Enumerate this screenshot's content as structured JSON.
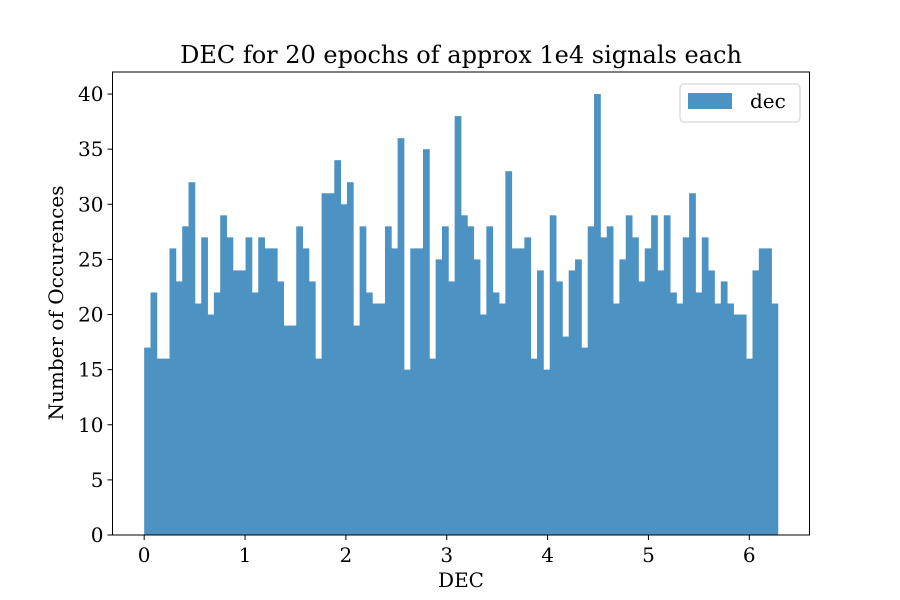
{
  "chart_data": {
    "type": "bar",
    "title": "DEC for 20 epochs of approx 1e4 signals each",
    "xlabel": "DEC",
    "ylabel": "Number of Occurences",
    "xlim": [
      -0.314,
      6.597
    ],
    "ylim": [
      0,
      42
    ],
    "x_ticks": [
      0,
      1,
      2,
      3,
      4,
      5,
      6
    ],
    "y_ticks": [
      0,
      5,
      10,
      15,
      20,
      25,
      30,
      35,
      40
    ],
    "bin_range": [
      0,
      6.283
    ],
    "grid": false,
    "legend": {
      "position": "top-right"
    },
    "series": [
      {
        "name": "dec",
        "color": "#4c92c3",
        "values": [
          17,
          22,
          16,
          16,
          26,
          23,
          28,
          32,
          21,
          27,
          20,
          22,
          29,
          27,
          24,
          24,
          27,
          22,
          27,
          26,
          26,
          23,
          19,
          19,
          28,
          26,
          23,
          16,
          31,
          31,
          34,
          30,
          32,
          19,
          28,
          22,
          21,
          21,
          28,
          26,
          36,
          15,
          26,
          26,
          35,
          16,
          25,
          28,
          23,
          38,
          29,
          28,
          25,
          20,
          28,
          22,
          21,
          33,
          26,
          26,
          27,
          16,
          24,
          15,
          29,
          23,
          18,
          24,
          25,
          17,
          28,
          40,
          27,
          28,
          21,
          25,
          29,
          27,
          23,
          26,
          29,
          24,
          29,
          22,
          21,
          27,
          31,
          22,
          27,
          24,
          21,
          23,
          21,
          20,
          20,
          16,
          24,
          26,
          26,
          21
        ]
      }
    ]
  }
}
